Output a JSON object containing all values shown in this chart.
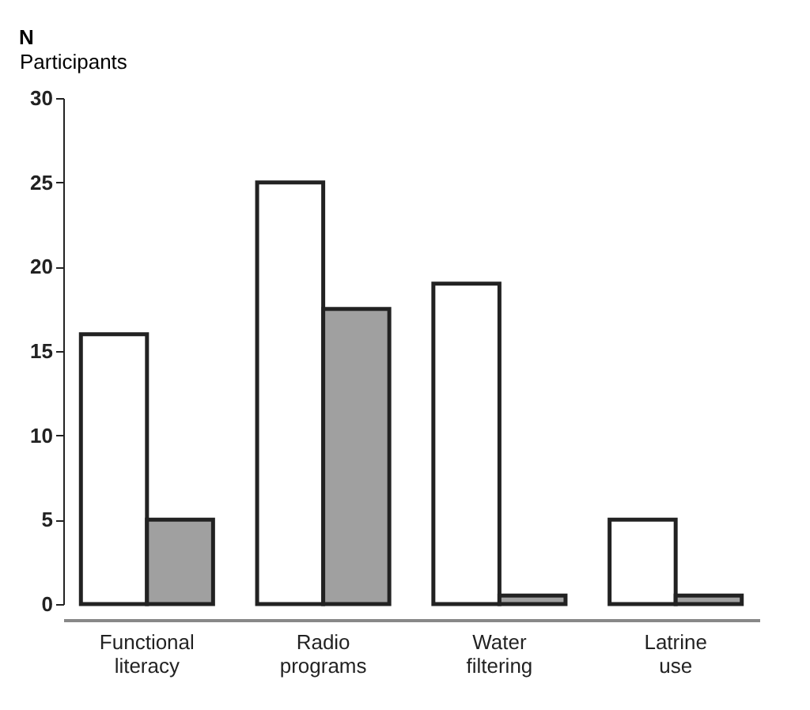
{
  "chart_data": {
    "type": "bar",
    "title": "N",
    "ylabel": "Participants",
    "categories": [
      "Functional literacy",
      "Radio programs",
      "Water filtering",
      "Latrine use"
    ],
    "series": [
      {
        "color": "#ffffff",
        "values": [
          16,
          25,
          19,
          5
        ]
      },
      {
        "color": "#a0a0a0",
        "values": [
          5,
          17.5,
          0.5,
          0.5
        ]
      }
    ],
    "ylim": [
      0,
      30
    ],
    "yticks": [
      0,
      5,
      10,
      15,
      20,
      25,
      30
    ],
    "grid": false,
    "legend": false
  }
}
